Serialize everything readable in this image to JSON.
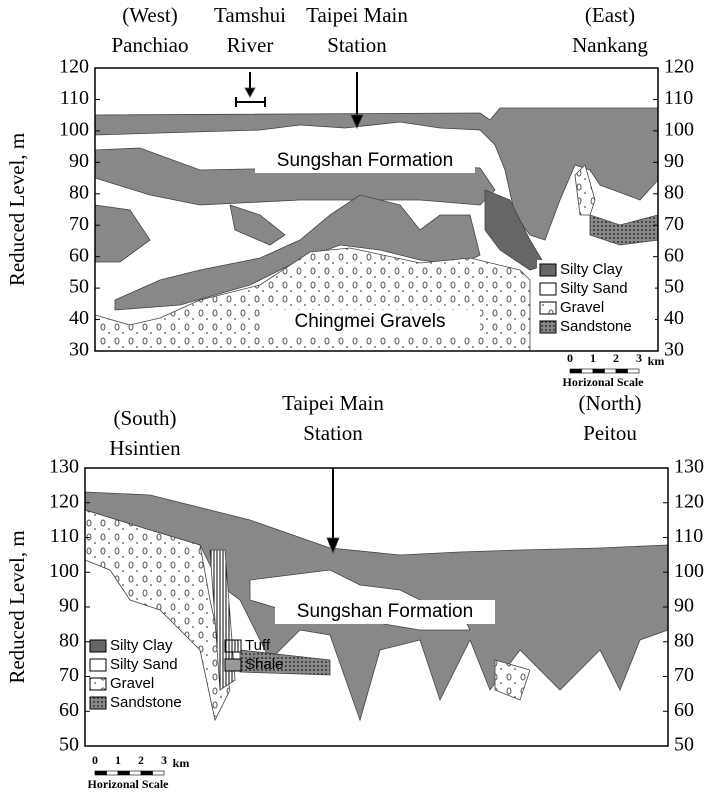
{
  "panels": [
    {
      "location_labels": [
        [
          "(West)",
          "Panchiao"
        ],
        [
          "Tamshui",
          "River"
        ],
        [
          "Taipei Main",
          "Station"
        ],
        [
          "(East)",
          "Nankang"
        ]
      ],
      "y_axis_label": "Reduced Level, m",
      "y_ticks": [
        120,
        110,
        100,
        90,
        80,
        70,
        60,
        50,
        40,
        30
      ],
      "formation_labels": [
        "Sungshan Formation",
        "Chingmei Gravels"
      ],
      "legend": [
        "Silty Clay",
        "Silty Sand",
        "Gravel",
        "Sandstone"
      ],
      "scale": {
        "ticks": [
          "0",
          "1",
          "2",
          "3"
        ],
        "unit": "km",
        "caption": "Horizonal Scale"
      }
    },
    {
      "location_labels": [
        [
          "(South)",
          "Hsintien"
        ],
        [
          "Taipei Main",
          "Station"
        ],
        [
          "(North)",
          "Peitou"
        ]
      ],
      "y_axis_label": "Reduced Level, m",
      "y_ticks": [
        130,
        120,
        110,
        100,
        90,
        80,
        70,
        60,
        50
      ],
      "formation_labels": [
        "Sungshan Formation"
      ],
      "legend": [
        "Silty Clay",
        "Silty Sand",
        "Gravel",
        "Sandstone",
        "Tuff",
        "Shale"
      ],
      "scale": {
        "ticks": [
          "0",
          "1",
          "2",
          "3"
        ],
        "unit": "km",
        "caption": "Horizonal Scale"
      }
    }
  ]
}
